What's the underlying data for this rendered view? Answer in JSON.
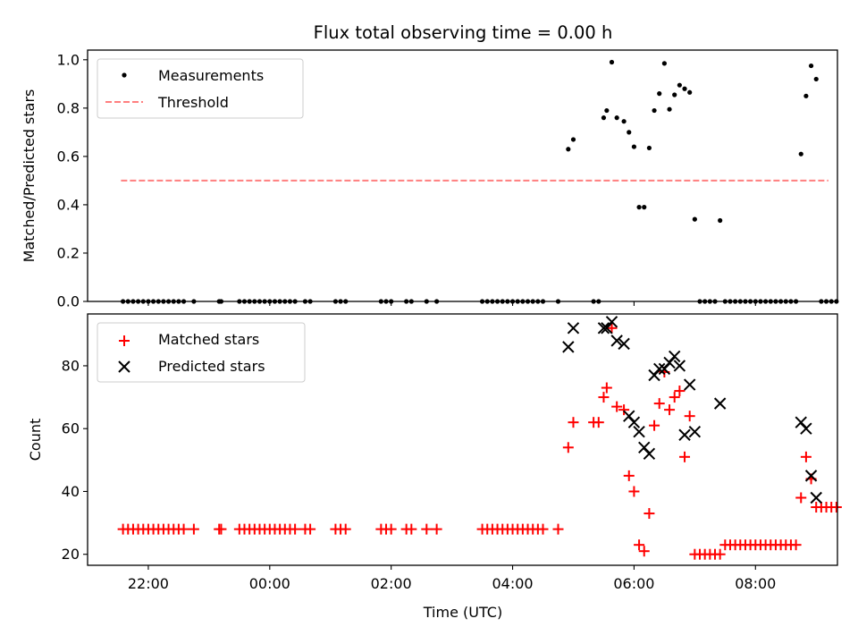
{
  "chart_data": [
    {
      "type": "scatter",
      "title": "Flux total observing time = 0.00 h",
      "xlabel": "",
      "ylabel": "Matched/Predicted stars",
      "ylim": [
        0,
        1.04
      ],
      "yticks": [
        "0.0",
        "0.2",
        "0.4",
        "0.6",
        "0.8",
        "1.0"
      ],
      "xlim_hours": [
        21.0,
        33.35
      ],
      "x_tick_labels": [
        "22:00",
        "00:00",
        "02:00",
        "04:00",
        "06:00",
        "08:00"
      ],
      "x_tick_labels_visible": false,
      "legend": {
        "position": "upper-left",
        "entries": [
          "Measurements",
          "Threshold"
        ]
      },
      "threshold": {
        "name": "Threshold",
        "value": 0.5,
        "x_range": [
          21.55,
          33.2
        ],
        "color": "#ff7f7f",
        "style": "dashed"
      },
      "series": [
        {
          "name": "Measurements",
          "color": "#000000",
          "marker": "dot",
          "points": [
            [
              "21:35",
              0
            ],
            [
              "21:40",
              0
            ],
            [
              "21:45",
              0
            ],
            [
              "21:50",
              0
            ],
            [
              "21:55",
              0
            ],
            [
              "22:00",
              0
            ],
            [
              "22:05",
              0
            ],
            [
              "22:10",
              0
            ],
            [
              "22:15",
              0
            ],
            [
              "22:20",
              0
            ],
            [
              "22:25",
              0
            ],
            [
              "22:30",
              0
            ],
            [
              "22:35",
              0
            ],
            [
              "22:45",
              0
            ],
            [
              "23:10",
              0
            ],
            [
              "23:12",
              0
            ],
            [
              "23:30",
              0
            ],
            [
              "23:35",
              0
            ],
            [
              "23:40",
              0
            ],
            [
              "23:45",
              0
            ],
            [
              "23:50",
              0
            ],
            [
              "23:55",
              0
            ],
            [
              "00:00",
              0
            ],
            [
              "00:05",
              0
            ],
            [
              "00:10",
              0
            ],
            [
              "00:15",
              0
            ],
            [
              "00:20",
              0
            ],
            [
              "00:25",
              0
            ],
            [
              "00:35",
              0
            ],
            [
              "00:40",
              0
            ],
            [
              "01:05",
              0
            ],
            [
              "01:10",
              0
            ],
            [
              "01:15",
              0
            ],
            [
              "01:50",
              0
            ],
            [
              "01:55",
              0
            ],
            [
              "02:00",
              0
            ],
            [
              "02:15",
              0
            ],
            [
              "02:20",
              0
            ],
            [
              "02:35",
              0
            ],
            [
              "02:45",
              0
            ],
            [
              "03:30",
              0
            ],
            [
              "03:35",
              0
            ],
            [
              "03:40",
              0
            ],
            [
              "03:45",
              0
            ],
            [
              "03:50",
              0
            ],
            [
              "03:55",
              0
            ],
            [
              "04:00",
              0
            ],
            [
              "04:05",
              0
            ],
            [
              "04:10",
              0
            ],
            [
              "04:15",
              0
            ],
            [
              "04:20",
              0
            ],
            [
              "04:25",
              0
            ],
            [
              "04:30",
              0
            ],
            [
              "04:45",
              0
            ],
            [
              "04:55",
              0.63
            ],
            [
              "05:00",
              0.67
            ],
            [
              "05:20",
              0
            ],
            [
              "05:25",
              0
            ],
            [
              "05:30",
              0.76
            ],
            [
              "05:33",
              0.79
            ],
            [
              "05:38",
              0.99
            ],
            [
              "05:43",
              0.76
            ],
            [
              "05:50",
              0.745
            ],
            [
              "05:55",
              0.7
            ],
            [
              "06:00",
              0.64
            ],
            [
              "06:05",
              0.39
            ],
            [
              "06:10",
              0.39
            ],
            [
              "06:15",
              0.635
            ],
            [
              "06:20",
              0.79
            ],
            [
              "06:25",
              0.86
            ],
            [
              "06:30",
              0.985
            ],
            [
              "06:35",
              0.795
            ],
            [
              "06:40",
              0.855
            ],
            [
              "06:45",
              0.895
            ],
            [
              "06:50",
              0.88
            ],
            [
              "06:55",
              0.865
            ],
            [
              "07:00",
              0.34
            ],
            [
              "07:05",
              0
            ],
            [
              "07:10",
              0
            ],
            [
              "07:15",
              0
            ],
            [
              "07:20",
              0
            ],
            [
              "07:25",
              0.335
            ],
            [
              "07:30",
              0
            ],
            [
              "07:35",
              0
            ],
            [
              "07:40",
              0
            ],
            [
              "07:45",
              0
            ],
            [
              "07:50",
              0
            ],
            [
              "07:55",
              0
            ],
            [
              "08:00",
              0
            ],
            [
              "08:05",
              0
            ],
            [
              "08:10",
              0
            ],
            [
              "08:15",
              0
            ],
            [
              "08:20",
              0
            ],
            [
              "08:25",
              0
            ],
            [
              "08:30",
              0
            ],
            [
              "08:35",
              0
            ],
            [
              "08:40",
              0
            ],
            [
              "08:45",
              0.61
            ],
            [
              "08:50",
              0.85
            ],
            [
              "08:55",
              0.975
            ],
            [
              "09:00",
              0.92
            ],
            [
              "09:05",
              0
            ],
            [
              "09:10",
              0
            ],
            [
              "09:15",
              0
            ],
            [
              "09:20",
              0
            ]
          ]
        }
      ]
    },
    {
      "type": "scatter",
      "title": "",
      "xlabel": "Time (UTC)",
      "ylabel": "Count",
      "ylim": [
        16.5,
        96.5
      ],
      "yticks": [
        "20",
        "40",
        "60",
        "80"
      ],
      "xlim_hours": [
        21.0,
        33.35
      ],
      "x_tick_labels": [
        "22:00",
        "00:00",
        "02:00",
        "04:00",
        "06:00",
        "08:00"
      ],
      "legend": {
        "position": "upper-left",
        "entries": [
          "Matched stars",
          "Predicted stars"
        ]
      },
      "series": [
        {
          "name": "Matched stars",
          "color": "#ff0000",
          "marker": "plus",
          "points": [
            [
              "21:35",
              28
            ],
            [
              "21:40",
              28
            ],
            [
              "21:45",
              28
            ],
            [
              "21:50",
              28
            ],
            [
              "21:55",
              28
            ],
            [
              "22:00",
              28
            ],
            [
              "22:05",
              28
            ],
            [
              "22:10",
              28
            ],
            [
              "22:15",
              28
            ],
            [
              "22:20",
              28
            ],
            [
              "22:25",
              28
            ],
            [
              "22:30",
              28
            ],
            [
              "22:35",
              28
            ],
            [
              "22:45",
              28
            ],
            [
              "23:10",
              28
            ],
            [
              "23:12",
              28
            ],
            [
              "23:30",
              28
            ],
            [
              "23:35",
              28
            ],
            [
              "23:40",
              28
            ],
            [
              "23:45",
              28
            ],
            [
              "23:50",
              28
            ],
            [
              "23:55",
              28
            ],
            [
              "00:00",
              28
            ],
            [
              "00:05",
              28
            ],
            [
              "00:10",
              28
            ],
            [
              "00:15",
              28
            ],
            [
              "00:20",
              28
            ],
            [
              "00:25",
              28
            ],
            [
              "00:35",
              28
            ],
            [
              "00:40",
              28
            ],
            [
              "01:05",
              28
            ],
            [
              "01:10",
              28
            ],
            [
              "01:15",
              28
            ],
            [
              "01:50",
              28
            ],
            [
              "01:55",
              28
            ],
            [
              "02:00",
              28
            ],
            [
              "02:15",
              28
            ],
            [
              "02:20",
              28
            ],
            [
              "02:35",
              28
            ],
            [
              "02:45",
              28
            ],
            [
              "03:30",
              28
            ],
            [
              "03:35",
              28
            ],
            [
              "03:40",
              28
            ],
            [
              "03:45",
              28
            ],
            [
              "03:50",
              28
            ],
            [
              "03:55",
              28
            ],
            [
              "04:00",
              28
            ],
            [
              "04:05",
              28
            ],
            [
              "04:10",
              28
            ],
            [
              "04:15",
              28
            ],
            [
              "04:20",
              28
            ],
            [
              "04:25",
              28
            ],
            [
              "04:30",
              28
            ],
            [
              "04:45",
              28
            ],
            [
              "04:55",
              54
            ],
            [
              "05:00",
              62
            ],
            [
              "05:20",
              62
            ],
            [
              "05:25",
              62
            ],
            [
              "05:30",
              70
            ],
            [
              "05:33",
              73
            ],
            [
              "05:38",
              92
            ],
            [
              "05:43",
              67
            ],
            [
              "05:50",
              66
            ],
            [
              "05:55",
              45
            ],
            [
              "06:00",
              40
            ],
            [
              "06:05",
              23
            ],
            [
              "06:10",
              21
            ],
            [
              "06:15",
              33
            ],
            [
              "06:20",
              61
            ],
            [
              "06:25",
              68
            ],
            [
              "06:30",
              78
            ],
            [
              "06:35",
              66
            ],
            [
              "06:40",
              70
            ],
            [
              "06:45",
              72
            ],
            [
              "06:50",
              51
            ],
            [
              "06:55",
              64
            ],
            [
              "07:00",
              20
            ],
            [
              "07:05",
              20
            ],
            [
              "07:10",
              20
            ],
            [
              "07:15",
              20
            ],
            [
              "07:20",
              20
            ],
            [
              "07:25",
              20
            ],
            [
              "07:30",
              23
            ],
            [
              "07:35",
              23
            ],
            [
              "07:40",
              23
            ],
            [
              "07:45",
              23
            ],
            [
              "07:50",
              23
            ],
            [
              "07:55",
              23
            ],
            [
              "08:00",
              23
            ],
            [
              "08:05",
              23
            ],
            [
              "08:10",
              23
            ],
            [
              "08:15",
              23
            ],
            [
              "08:20",
              23
            ],
            [
              "08:25",
              23
            ],
            [
              "08:30",
              23
            ],
            [
              "08:35",
              23
            ],
            [
              "08:40",
              23
            ],
            [
              "08:45",
              38
            ],
            [
              "08:50",
              51
            ],
            [
              "08:55",
              44
            ],
            [
              "09:00",
              35
            ],
            [
              "09:05",
              35
            ],
            [
              "09:10",
              35
            ],
            [
              "09:15",
              35
            ],
            [
              "09:20",
              35
            ]
          ]
        },
        {
          "name": "Predicted stars",
          "color": "#000000",
          "marker": "x",
          "points": [
            [
              "04:55",
              86
            ],
            [
              "05:00",
              92
            ],
            [
              "05:30",
              92
            ],
            [
              "05:33",
              92
            ],
            [
              "05:38",
              94
            ],
            [
              "05:43",
              88
            ],
            [
              "05:50",
              87
            ],
            [
              "05:55",
              64
            ],
            [
              "06:00",
              62
            ],
            [
              "06:05",
              59
            ],
            [
              "06:10",
              54
            ],
            [
              "06:15",
              52
            ],
            [
              "06:20",
              77
            ],
            [
              "06:25",
              79
            ],
            [
              "06:30",
              79
            ],
            [
              "06:35",
              81
            ],
            [
              "06:40",
              83
            ],
            [
              "06:45",
              80
            ],
            [
              "06:50",
              58
            ],
            [
              "06:55",
              74
            ],
            [
              "07:00",
              59
            ],
            [
              "07:25",
              68
            ],
            [
              "08:45",
              62
            ],
            [
              "08:50",
              60
            ],
            [
              "08:55",
              45
            ],
            [
              "09:00",
              38
            ]
          ]
        }
      ]
    }
  ]
}
